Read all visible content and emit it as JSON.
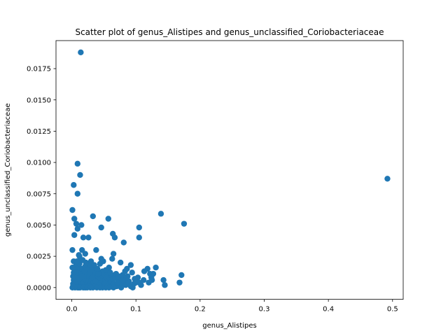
{
  "chart_data": {
    "type": "scatter",
    "title": "Scatter plot of genus_Alistipes and genus_unclassified_Coriobacteriaceae",
    "xlabel": "genus_Alistipes",
    "ylabel": "genus_unclassified_Coriobacteriaceae",
    "xlim": [
      -0.0246,
      0.5166
    ],
    "ylim": [
      -0.00094,
      0.01974
    ],
    "xticks": [
      0.0,
      0.1,
      0.2,
      0.3,
      0.4,
      0.5
    ],
    "xtick_labels": [
      "0.0",
      "0.1",
      "0.2",
      "0.3",
      "0.4",
      "0.5"
    ],
    "yticks": [
      0.0,
      0.0025,
      0.005,
      0.0075,
      0.01,
      0.0125,
      0.015,
      0.0175
    ],
    "ytick_labels": [
      "0.0000",
      "0.0025",
      "0.0050",
      "0.0075",
      "0.0100",
      "0.0125",
      "0.0150",
      "0.0175"
    ],
    "grid": false,
    "legend": false,
    "marker_color": "#1f77b4",
    "points": [
      [
        0.014,
        0.0188
      ],
      [
        0.492,
        0.0087
      ],
      [
        0.009,
        0.0099
      ],
      [
        0.013,
        0.009
      ],
      [
        0.003,
        0.0082
      ],
      [
        0.009,
        0.0075
      ],
      [
        0.001,
        0.0062
      ],
      [
        0.004,
        0.0055
      ],
      [
        0.007,
        0.0051
      ],
      [
        0.009,
        0.0047
      ],
      [
        0.015,
        0.005
      ],
      [
        0.033,
        0.0057
      ],
      [
        0.057,
        0.0055
      ],
      [
        0.046,
        0.0048
      ],
      [
        0.139,
        0.0059
      ],
      [
        0.175,
        0.0051
      ],
      [
        0.105,
        0.0048
      ],
      [
        0.105,
        0.004
      ],
      [
        0.064,
        0.0043
      ],
      [
        0.067,
        0.004
      ],
      [
        0.081,
        0.0036
      ],
      [
        0.004,
        0.0042
      ],
      [
        0.018,
        0.004
      ],
      [
        0.026,
        0.004
      ],
      [
        0.001,
        0.003
      ],
      [
        0.016,
        0.003
      ],
      [
        0.038,
        0.003
      ],
      [
        0.011,
        0.0026
      ],
      [
        0.021,
        0.0027
      ],
      [
        0.065,
        0.0027
      ],
      [
        0.063,
        0.0023
      ],
      [
        0.049,
        0.0021
      ],
      [
        0.046,
        0.0023
      ],
      [
        0.003,
        0.0021
      ],
      [
        0.013,
        0.0021
      ],
      [
        0.03,
        0.0021
      ],
      [
        0.076,
        0.002
      ],
      [
        0.086,
        0.0015
      ],
      [
        0.092,
        0.0018
      ],
      [
        0.113,
        0.0013
      ],
      [
        0.118,
        0.0015
      ],
      [
        0.131,
        0.0016
      ],
      [
        0.127,
        0.0011
      ],
      [
        0.122,
        0.0011
      ],
      [
        0.124,
        0.0008
      ],
      [
        0.103,
        0.0008
      ],
      [
        0.098,
        0.0007
      ],
      [
        0.089,
        0.0005
      ],
      [
        0.082,
        0.0006
      ],
      [
        0.105,
        0.0004
      ],
      [
        0.12,
        0.0004
      ],
      [
        0.125,
        0.0006
      ],
      [
        0.143,
        0.0006
      ],
      [
        0.145,
        0.0002
      ],
      [
        0.168,
        0.0004
      ],
      [
        0.171,
        0.001
      ],
      [
        0.095,
        0.0
      ],
      [
        0.001,
        0.0
      ],
      [
        0.002,
        0.0003
      ],
      [
        0.003,
        0.0006
      ],
      [
        0.004,
        0.001
      ],
      [
        0.005,
        0.0014
      ],
      [
        0.006,
        0.0017
      ],
      [
        0.007,
        0.0002
      ],
      [
        0.008,
        0.0005
      ],
      [
        0.009,
        0.0009
      ],
      [
        0.01,
        0.0012
      ],
      [
        0.011,
        0.0016
      ],
      [
        0.012,
        0.0019
      ],
      [
        0.013,
        0.0003
      ],
      [
        0.014,
        0.0007
      ],
      [
        0.015,
        0.0011
      ],
      [
        0.016,
        0.0015
      ],
      [
        0.017,
        0.0001
      ],
      [
        0.018,
        0.0004
      ],
      [
        0.019,
        0.0008
      ],
      [
        0.02,
        0.0013
      ],
      [
        0.021,
        0.0017
      ],
      [
        0.022,
        0.0006
      ],
      [
        0.023,
        0.001
      ],
      [
        0.024,
        0.0002
      ],
      [
        0.025,
        0.0014
      ],
      [
        0.026,
        0.0005
      ],
      [
        0.027,
        0.0009
      ],
      [
        0.028,
        0.0018
      ],
      [
        0.029,
        0.0003
      ],
      [
        0.03,
        0.0007
      ],
      [
        0.031,
        0.0012
      ],
      [
        0.032,
        0.0016
      ],
      [
        0.033,
        0.0
      ],
      [
        0.034,
        0.0004
      ],
      [
        0.035,
        0.0009
      ],
      [
        0.036,
        0.0013
      ],
      [
        0.037,
        0.0002
      ],
      [
        0.038,
        0.0006
      ],
      [
        0.039,
        0.001
      ],
      [
        0.04,
        0.0015
      ],
      [
        0.041,
        0.0003
      ],
      [
        0.042,
        0.0008
      ],
      [
        0.043,
        0.0012
      ],
      [
        0.044,
        0.0005
      ],
      [
        0.045,
        0.0001
      ],
      [
        0.046,
        0.0009
      ],
      [
        0.047,
        0.0004
      ],
      [
        0.048,
        0.0013
      ],
      [
        0.049,
        0.0007
      ],
      [
        0.05,
        0.0002
      ],
      [
        0.051,
        0.0011
      ],
      [
        0.052,
        0.0006
      ],
      [
        0.053,
        0.0
      ],
      [
        0.054,
        0.0008
      ],
      [
        0.055,
        0.0003
      ],
      [
        0.056,
        0.0012
      ],
      [
        0.057,
        0.0005
      ],
      [
        0.058,
        0.0009
      ],
      [
        0.059,
        0.0001
      ],
      [
        0.06,
        0.0006
      ],
      [
        0.061,
        0.0004
      ],
      [
        0.062,
        0.001
      ],
      [
        0.063,
        0.0002
      ],
      [
        0.064,
        0.0007
      ],
      [
        0.066,
        0.0003
      ],
      [
        0.068,
        0.0008
      ],
      [
        0.07,
        0.0001
      ],
      [
        0.072,
        0.0005
      ],
      [
        0.074,
        0.0002
      ],
      [
        0.076,
        0.0007
      ],
      [
        0.078,
        0.0003
      ],
      [
        0.08,
        0.0006
      ],
      [
        0.084,
        0.0002
      ],
      [
        0.088,
        0.0004
      ],
      [
        0.092,
        0.0001
      ],
      [
        0.097,
        0.0003
      ],
      [
        0.108,
        0.0002
      ],
      [
        0.112,
        0.0006
      ],
      [
        0.002,
        0.0009
      ],
      [
        0.006,
        0.0003
      ],
      [
        0.011,
        0.0
      ],
      [
        0.016,
        0.0009
      ],
      [
        0.021,
        0.0
      ],
      [
        0.027,
        0.0001
      ],
      [
        0.032,
        0.0008
      ],
      [
        0.037,
        0.0005
      ],
      [
        0.043,
        0.0002
      ],
      [
        0.048,
        0.0
      ],
      [
        0.052,
        0.0003
      ],
      [
        0.056,
        0.0001
      ],
      [
        0.065,
        0.0
      ],
      [
        0.071,
        0.0004
      ],
      [
        0.077,
        0.0
      ],
      [
        0.085,
        0.0008
      ],
      [
        0.001,
        0.0016
      ],
      [
        0.003,
        0.0012
      ],
      [
        0.008,
        0.0021
      ],
      [
        0.012,
        0.0025
      ],
      [
        0.017,
        0.0022
      ],
      [
        0.022,
        0.002
      ],
      [
        0.028,
        0.0012
      ],
      [
        0.035,
        0.0018
      ],
      [
        0.041,
        0.0011
      ],
      [
        0.044,
        0.0019
      ],
      [
        0.053,
        0.0014
      ],
      [
        0.058,
        0.0016
      ],
      [
        0.06,
        0.0012
      ],
      [
        0.069,
        0.0011
      ],
      [
        0.073,
        0.0009
      ],
      [
        0.079,
        0.001
      ],
      [
        0.083,
        0.0013
      ],
      [
        0.087,
        0.0009
      ],
      [
        0.094,
        0.0012
      ],
      [
        0.1,
        0.0004
      ],
      [
        0.002,
        0.0001
      ],
      [
        0.005,
        0.0
      ],
      [
        0.009,
        0.0
      ],
      [
        0.013,
        0.0
      ],
      [
        0.018,
        0.0
      ],
      [
        0.024,
        0.0
      ],
      [
        0.029,
        0.0
      ],
      [
        0.039,
        0.0
      ],
      [
        0.044,
        0.0
      ],
      [
        0.058,
        0.0
      ]
    ]
  }
}
